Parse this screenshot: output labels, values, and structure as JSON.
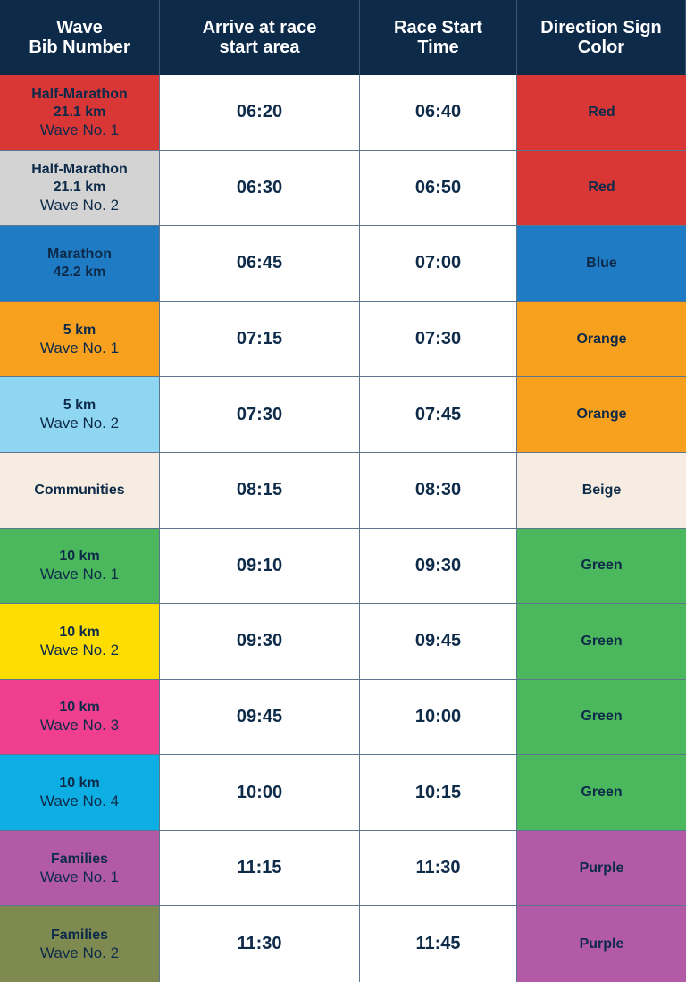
{
  "header": {
    "wave": "Wave\nBib Number",
    "arrive": "Arrive at race\nstart area",
    "start": "Race Start\nTime",
    "direction": "Direction Sign\nColor"
  },
  "rows": [
    {
      "name": "Half-Marathon\n21.1 km",
      "sub": "Wave No. 1",
      "arrive": "06:20",
      "start": "06:40",
      "sign": "Red",
      "wave_color": "#d93636",
      "sign_color": "#d93636"
    },
    {
      "name": "Half-Marathon\n21.1 km",
      "sub": "Wave No. 2",
      "arrive": "06:30",
      "start": "06:50",
      "sign": "Red",
      "wave_color": "#d3d3d3",
      "sign_color": "#d93636"
    },
    {
      "name": "Marathon\n42.2 km",
      "sub": "",
      "arrive": "06:45",
      "start": "07:00",
      "sign": "Blue",
      "wave_color": "#1e7bc4",
      "sign_color": "#1e7bc4"
    },
    {
      "name": "5 km",
      "sub": "Wave No. 1",
      "arrive": "07:15",
      "start": "07:30",
      "sign": "Orange",
      "wave_color": "#f7a11f",
      "sign_color": "#f7a11f"
    },
    {
      "name": "5 km",
      "sub": "Wave No. 2",
      "arrive": "07:30",
      "start": "07:45",
      "sign": "Orange",
      "wave_color": "#8fd6f2",
      "sign_color": "#f7a11f"
    },
    {
      "name": "Communities",
      "sub": "",
      "arrive": "08:15",
      "start": "08:30",
      "sign": "Beige",
      "wave_color": "#f6ece1",
      "sign_color": "#f6ece1"
    },
    {
      "name": "10 km",
      "sub": "Wave No. 1",
      "arrive": "09:10",
      "start": "09:30",
      "sign": "Green",
      "wave_color": "#4bb85d",
      "sign_color": "#4bb85d"
    },
    {
      "name": "10 km",
      "sub": "Wave No. 2",
      "arrive": "09:30",
      "start": "09:45",
      "sign": "Green",
      "wave_color": "#fede00",
      "sign_color": "#4bb85d"
    },
    {
      "name": "10 km",
      "sub": "Wave No. 3",
      "arrive": "09:45",
      "start": "10:00",
      "sign": "Green",
      "wave_color": "#ef3f8e",
      "sign_color": "#4bb85d"
    },
    {
      "name": "10 km",
      "sub": "Wave No. 4",
      "arrive": "10:00",
      "start": "10:15",
      "sign": "Green",
      "wave_color": "#0caee4",
      "sign_color": "#4bb85d"
    },
    {
      "name": "Families",
      "sub": "Wave No. 1",
      "arrive": "11:15",
      "start": "11:30",
      "sign": "Purple",
      "wave_color": "#b35aa7",
      "sign_color": "#b35aa7"
    },
    {
      "name": "Families",
      "sub": "Wave No. 2",
      "arrive": "11:30",
      "start": "11:45",
      "sign": "Purple",
      "wave_color": "#7e8a4f",
      "sign_color": "#b35aa7"
    }
  ]
}
